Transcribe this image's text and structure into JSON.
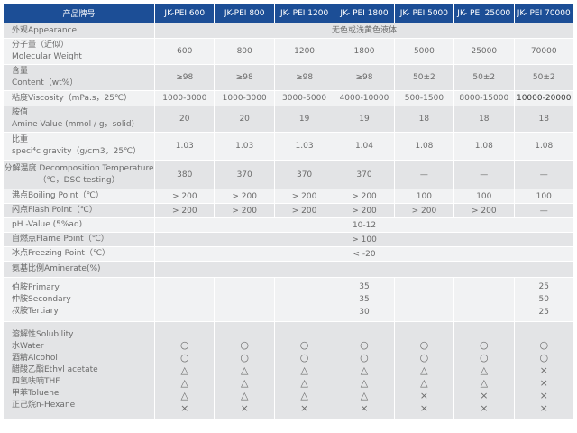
{
  "header": {
    "product": "产品牌号",
    "models": [
      "JK-PEI 600",
      "JK-PEI 800",
      "JK- PEI 1200",
      "JK- PEI 1800",
      "JK- PEI 5000",
      "JK- PEI 25000",
      "JK- PEI 70000"
    ]
  },
  "rows": {
    "appearance": {
      "label": "外观Appearance",
      "value": "无色或浅黄色液体"
    },
    "mw": {
      "label": [
        "分子量（近似）",
        "Molecular Weight"
      ],
      "values": [
        "600",
        "800",
        "1200",
        "1800",
        "5000",
        "25000",
        "70000"
      ]
    },
    "content": {
      "label": [
        "含量",
        "Content（wt%）"
      ],
      "values": [
        "≥98",
        "≥98",
        "≥98",
        "≥98",
        "50±2",
        "50±2",
        "50±2"
      ]
    },
    "viscosity": {
      "label": "粘度Viscosity（mPa.s，25℃）",
      "values": [
        "1000-3000",
        "1000-3000",
        "3000-5000",
        "4000-10000",
        "500-1500",
        "8000-15000",
        "10000-20000"
      ]
    },
    "amine": {
      "label": [
        "胺值",
        "Amine Value (mmol / g，solid)"
      ],
      "values": [
        "20",
        "20",
        "19",
        "19",
        "18",
        "18",
        "18"
      ]
    },
    "gravity": {
      "label": [
        "比重",
        "speci⁴c gravity（g/cm3，25℃）"
      ],
      "values": [
        "1.03",
        "1.03",
        "1.03",
        "1.04",
        "1.08",
        "1.08",
        "1.08"
      ]
    },
    "decomposition": {
      "label": [
        "分解温度 Decomposition Temperature",
        "（℃，DSC testing）"
      ],
      "values": [
        "380",
        "370",
        "370",
        "370",
        "—",
        "—",
        "—"
      ]
    },
    "boiling": {
      "label": "沸点Boiling Point（℃）",
      "values": [
        "> 200",
        "> 200",
        "> 200",
        "> 200",
        "100",
        "100",
        "100"
      ]
    },
    "flash": {
      "label": "闪点Flash Point（℃）",
      "values": [
        "> 200",
        "> 200",
        "> 200",
        "> 200",
        "> 200",
        "> 200",
        "—"
      ]
    },
    "ph": {
      "label": "pH -Value (5%aq)",
      "value": "10-12"
    },
    "autoignition": {
      "label": "自燃点Flame Point（℃）",
      "value": "> 100"
    },
    "freezing": {
      "label": "冰点Freezing Point（℃）",
      "value": "< -20"
    },
    "aminerate": {
      "label": "氨基比例Aminerate(%)"
    },
    "amine_types": {
      "labels": [
        "伯胺Primary",
        "仲胺Secondary",
        "叔胺Tertiary"
      ],
      "pei1800": [
        "35",
        "35",
        "30"
      ],
      "pei70000": [
        "25",
        "50",
        "25"
      ]
    },
    "solubility": {
      "labels": [
        "溶解性Solubility",
        "水Water",
        "酒精Alcohol",
        "醋酸乙酯Ethyl acetate",
        "四氢呋喃THF",
        "甲苯Toluene",
        "正己烷n-Hexane"
      ],
      "columns": [
        [
          "○",
          "○",
          "△",
          "△",
          "△",
          "×"
        ],
        [
          "○",
          "○",
          "△",
          "△",
          "△",
          "×"
        ],
        [
          "○",
          "○",
          "△",
          "△",
          "△",
          "×"
        ],
        [
          "○",
          "○",
          "△",
          "△",
          "△",
          "×"
        ],
        [
          "○",
          "○",
          "△",
          "△",
          "×",
          "×"
        ],
        [
          "○",
          "○",
          "△",
          "△",
          "×",
          "×"
        ],
        [
          "○",
          "○",
          "×",
          "×",
          "×",
          "×"
        ]
      ]
    }
  }
}
